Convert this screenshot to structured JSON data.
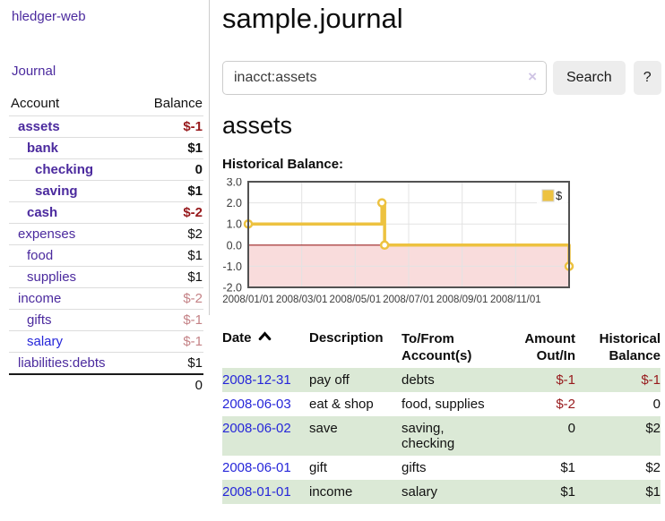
{
  "sidebar": {
    "app_title": "hledger-web",
    "journal_link": "Journal",
    "accounts_table": {
      "headers": [
        "Account",
        "Balance"
      ],
      "rows": [
        {
          "name": "assets",
          "level": 1,
          "bold": true,
          "blue": false,
          "balance": "$-1",
          "balance_class": "neg-strong"
        },
        {
          "name": "bank",
          "level": 2,
          "bold": true,
          "blue": false,
          "balance": "$1",
          "balance_class": "pos"
        },
        {
          "name": "checking",
          "level": 3,
          "bold": true,
          "blue": false,
          "balance": "0",
          "balance_class": "pos"
        },
        {
          "name": "saving",
          "level": 3,
          "bold": true,
          "blue": false,
          "balance": "$1",
          "balance_class": "pos"
        },
        {
          "name": "cash",
          "level": 2,
          "bold": true,
          "blue": false,
          "balance": "$-2",
          "balance_class": "neg-strong"
        },
        {
          "name": "expenses",
          "level": 1,
          "bold": false,
          "blue": false,
          "balance": "$2",
          "balance_class": "pos"
        },
        {
          "name": "food",
          "level": 2,
          "bold": false,
          "blue": false,
          "balance": "$1",
          "balance_class": "pos"
        },
        {
          "name": "supplies",
          "level": 2,
          "bold": false,
          "blue": false,
          "balance": "$1",
          "balance_class": "pos"
        },
        {
          "name": "income",
          "level": 1,
          "bold": false,
          "blue": false,
          "balance": "$-2",
          "balance_class": "neg-muted"
        },
        {
          "name": "gifts",
          "level": 2,
          "bold": false,
          "blue": false,
          "balance": "$-1",
          "balance_class": "neg-muted"
        },
        {
          "name": "salary",
          "level": 2,
          "bold": false,
          "blue": true,
          "balance": "$-1",
          "balance_class": "neg-muted"
        },
        {
          "name": "liabilities:debts",
          "level": 1,
          "bold": false,
          "blue": false,
          "balance": "$1",
          "balance_class": "pos"
        }
      ],
      "total": "0"
    }
  },
  "main": {
    "title": "sample.journal",
    "search": {
      "value": "inacct:assets",
      "clear_icon": "×",
      "button_label": "Search",
      "help_label": "?"
    },
    "account_heading": "assets",
    "chart_label": "Historical Balance:",
    "transactions": {
      "headers": {
        "date": "Date",
        "description": "Description",
        "accounts_line1": "To/From",
        "accounts_line2": "Account(s)",
        "amount_line1": "Amount",
        "amount_line2": "Out/In",
        "balance_line1": "Historical",
        "balance_line2": "Balance"
      },
      "rows": [
        {
          "date": "2008-12-31",
          "description": "pay off",
          "accounts": "debts",
          "amount": "$-1",
          "amount_negative": true,
          "balance": "$-1",
          "balance_negative": true
        },
        {
          "date": "2008-06-03",
          "description": "eat & shop",
          "accounts": "food, supplies",
          "amount": "$-2",
          "amount_negative": true,
          "balance": "0",
          "balance_negative": false
        },
        {
          "date": "2008-06-02",
          "description": "save",
          "accounts": "saving, checking",
          "amount": "0",
          "amount_negative": false,
          "balance": "$2",
          "balance_negative": false
        },
        {
          "date": "2008-06-01",
          "description": "gift",
          "accounts": "gifts",
          "amount": "$1",
          "amount_negative": false,
          "balance": "$2",
          "balance_negative": false
        },
        {
          "date": "2008-01-01",
          "description": "income",
          "accounts": "salary",
          "amount": "$1",
          "amount_negative": false,
          "balance": "$1",
          "balance_negative": false
        }
      ]
    }
  },
  "chart_data": {
    "type": "line",
    "step": true,
    "title": "Historical Balance",
    "legend_position": "top-right",
    "grid": true,
    "xlim_months": [
      0,
      12
    ],
    "ylim": [
      -2,
      3
    ],
    "y_ticks": [
      3.0,
      2.0,
      1.0,
      0.0,
      -1.0,
      -2.0
    ],
    "x_ticks": {
      "positions_months": [
        0,
        2,
        4,
        6,
        8,
        10
      ],
      "labels": [
        "2008/01/01",
        "2008/03/01",
        "2008/05/01",
        "2008/07/01",
        "2008/09/01",
        "2008/11/01"
      ]
    },
    "series": [
      {
        "name": "$",
        "color": "#edc240",
        "points_date_value": [
          [
            "2008-01-01",
            1
          ],
          [
            "2008-06-01",
            2
          ],
          [
            "2008-06-03",
            0
          ],
          [
            "2008-12-31",
            -1
          ]
        ],
        "step_points_months": [
          [
            0,
            1
          ],
          [
            5,
            1
          ],
          [
            5,
            2
          ],
          [
            5.1,
            2
          ],
          [
            5.1,
            0
          ],
          [
            12,
            0
          ],
          [
            12,
            -1
          ]
        ],
        "marker_points_months": [
          [
            0,
            1
          ],
          [
            5,
            2
          ],
          [
            5.1,
            0
          ],
          [
            12,
            -1
          ]
        ]
      }
    ],
    "negative_region_fill": "#f9dcdc",
    "zero_line_color": "#9b2020",
    "grid_color": "#e3e3e3",
    "border_color": "#525252"
  }
}
